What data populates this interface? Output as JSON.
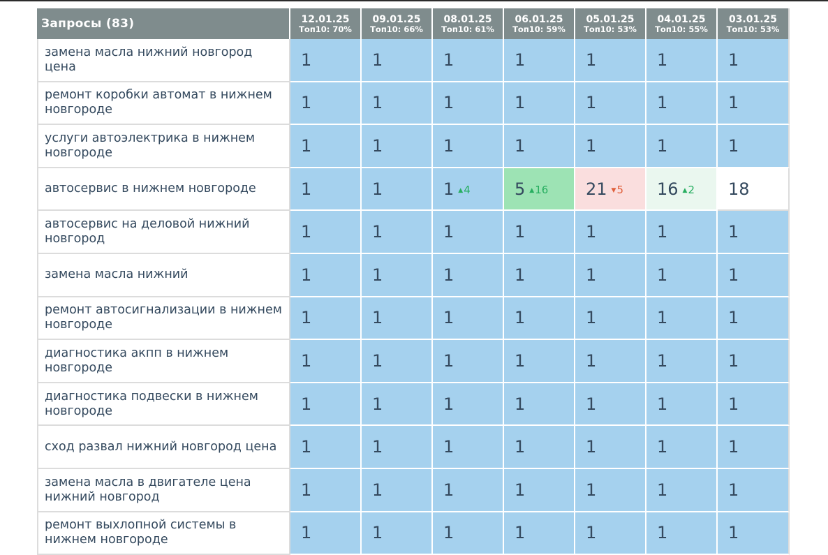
{
  "header": {
    "queries_title": "Запросы (83)",
    "dates": [
      {
        "date": "12.01.25",
        "top10": "Топ10: 70%"
      },
      {
        "date": "09.01.25",
        "top10": "Топ10: 66%"
      },
      {
        "date": "08.01.25",
        "top10": "Топ10: 61%"
      },
      {
        "date": "06.01.25",
        "top10": "Топ10: 59%"
      },
      {
        "date": "05.01.25",
        "top10": "Топ10: 53%"
      },
      {
        "date": "04.01.25",
        "top10": "Топ10: 55%"
      },
      {
        "date": "03.01.25",
        "top10": "Топ10: 53%"
      }
    ]
  },
  "colors": {
    "header_bg": "#7f8c8d",
    "position_top": "#a5d1ee",
    "improved_strong": "#9de3b4",
    "declined": "#fadede",
    "improved_light": "#eaf7ef",
    "delta_up": "#27ae60",
    "delta_down": "#e0603c"
  },
  "rows": [
    {
      "query": "замена масла нижний новгород цена",
      "cells": [
        {
          "pos": "1"
        },
        {
          "pos": "1"
        },
        {
          "pos": "1"
        },
        {
          "pos": "1"
        },
        {
          "pos": "1"
        },
        {
          "pos": "1"
        },
        {
          "pos": "1"
        }
      ]
    },
    {
      "query": "ремонт коробки автомат в нижнем новгороде",
      "cells": [
        {
          "pos": "1"
        },
        {
          "pos": "1"
        },
        {
          "pos": "1"
        },
        {
          "pos": "1"
        },
        {
          "pos": "1"
        },
        {
          "pos": "1"
        },
        {
          "pos": "1"
        }
      ]
    },
    {
      "query": "услуги автоэлектрика в нижнем новгороде",
      "cells": [
        {
          "pos": "1"
        },
        {
          "pos": "1"
        },
        {
          "pos": "1"
        },
        {
          "pos": "1"
        },
        {
          "pos": "1"
        },
        {
          "pos": "1"
        },
        {
          "pos": "1"
        }
      ]
    },
    {
      "query": "автосервис в нижнем новгороде",
      "cells": [
        {
          "pos": "1"
        },
        {
          "pos": "1"
        },
        {
          "pos": "1",
          "delta": "4",
          "dir": "up"
        },
        {
          "pos": "5",
          "delta": "16",
          "dir": "up",
          "bg": "up-strong"
        },
        {
          "pos": "21",
          "delta": "5",
          "dir": "down",
          "bg": "down"
        },
        {
          "pos": "16",
          "delta": "2",
          "dir": "up",
          "bg": "up-light"
        },
        {
          "pos": "18",
          "bg": "plain"
        }
      ]
    },
    {
      "query": "автосервис на деловой нижний новгород",
      "cells": [
        {
          "pos": "1"
        },
        {
          "pos": "1"
        },
        {
          "pos": "1"
        },
        {
          "pos": "1"
        },
        {
          "pos": "1"
        },
        {
          "pos": "1"
        },
        {
          "pos": "1"
        }
      ]
    },
    {
      "query": "замена масла нижний",
      "cells": [
        {
          "pos": "1"
        },
        {
          "pos": "1"
        },
        {
          "pos": "1"
        },
        {
          "pos": "1"
        },
        {
          "pos": "1"
        },
        {
          "pos": "1"
        },
        {
          "pos": "1"
        }
      ]
    },
    {
      "query": "ремонт автосигнализации в нижнем новгороде",
      "cells": [
        {
          "pos": "1"
        },
        {
          "pos": "1"
        },
        {
          "pos": "1"
        },
        {
          "pos": "1"
        },
        {
          "pos": "1"
        },
        {
          "pos": "1"
        },
        {
          "pos": "1"
        }
      ]
    },
    {
      "query": "диагностика акпп в нижнем новгороде",
      "cells": [
        {
          "pos": "1"
        },
        {
          "pos": "1"
        },
        {
          "pos": "1"
        },
        {
          "pos": "1"
        },
        {
          "pos": "1"
        },
        {
          "pos": "1"
        },
        {
          "pos": "1"
        }
      ]
    },
    {
      "query": "диагностика подвески в нижнем новгороде",
      "cells": [
        {
          "pos": "1"
        },
        {
          "pos": "1"
        },
        {
          "pos": "1"
        },
        {
          "pos": "1"
        },
        {
          "pos": "1"
        },
        {
          "pos": "1"
        },
        {
          "pos": "1"
        }
      ]
    },
    {
      "query": "сход развал нижний новгород цена",
      "cells": [
        {
          "pos": "1"
        },
        {
          "pos": "1"
        },
        {
          "pos": "1"
        },
        {
          "pos": "1"
        },
        {
          "pos": "1"
        },
        {
          "pos": "1"
        },
        {
          "pos": "1"
        }
      ]
    },
    {
      "query": "замена масла в двигателе цена нижний новгород",
      "cells": [
        {
          "pos": "1"
        },
        {
          "pos": "1"
        },
        {
          "pos": "1"
        },
        {
          "pos": "1"
        },
        {
          "pos": "1"
        },
        {
          "pos": "1"
        },
        {
          "pos": "1"
        }
      ]
    },
    {
      "query": "ремонт выхлопной системы в нижнем новгороде",
      "cells": [
        {
          "pos": "1"
        },
        {
          "pos": "1"
        },
        {
          "pos": "1"
        },
        {
          "pos": "1"
        },
        {
          "pos": "1"
        },
        {
          "pos": "1"
        },
        {
          "pos": "1"
        }
      ]
    }
  ]
}
